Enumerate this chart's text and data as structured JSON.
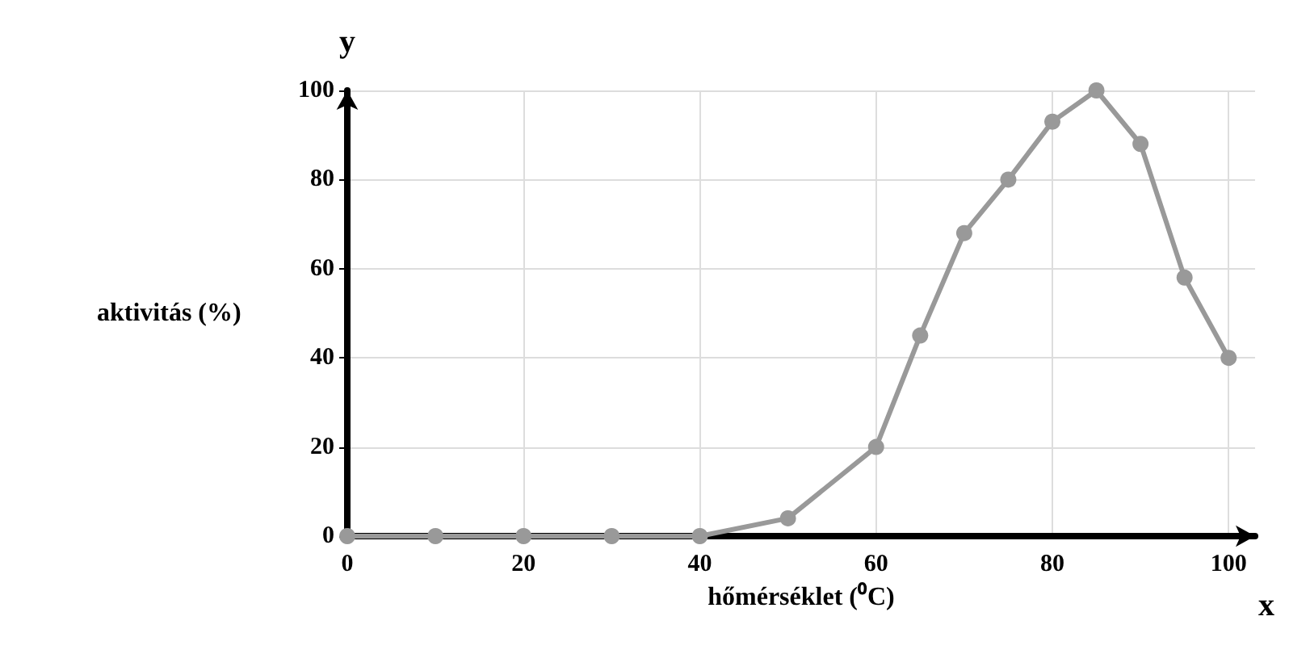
{
  "chart_data": {
    "type": "line",
    "xlabel": "hőmérséklet (⁰C)",
    "ylabel": "aktivitás (%)",
    "annotations": [
      "y",
      "x"
    ],
    "x": [
      0,
      10,
      20,
      30,
      40,
      50,
      60,
      65,
      70,
      75,
      80,
      85,
      90,
      95,
      100
    ],
    "series": [
      {
        "color": "#999999",
        "values": [
          0,
          0,
          0,
          0,
          0,
          4,
          20,
          45,
          68,
          80,
          93,
          100,
          88,
          58,
          40
        ]
      }
    ],
    "xlim": [
      0,
      103
    ],
    "ylim": [
      0,
      100
    ],
    "xticks": [
      0,
      20,
      40,
      60,
      80,
      100
    ],
    "yticks": [
      0,
      20,
      40,
      60,
      80,
      100
    ],
    "grid": true,
    "marker": "circle",
    "line_style": "solid"
  }
}
